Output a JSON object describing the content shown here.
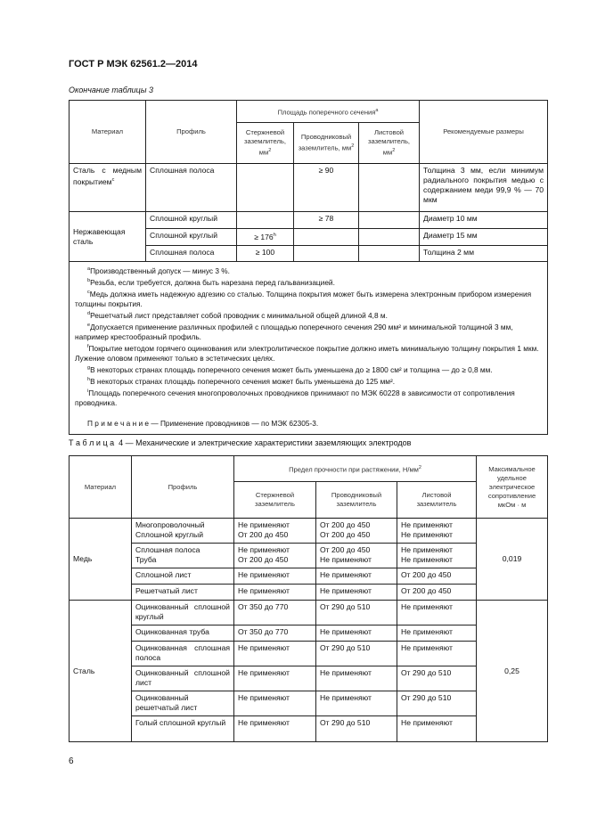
{
  "header": {
    "title": "ГОСТ Р МЭК 62561.2—2014"
  },
  "table3": {
    "caption": "Окончание таблицы 3",
    "headers": {
      "material": "Материал",
      "profile": "Профиль",
      "area": "Площадь поперечного сечения",
      "area_sup": "a",
      "rod": "Стержневой заземлитель, мм",
      "conductor": "Проводниковый заземлитель, мм",
      "sheet": "Листовой заземлитель, мм",
      "unit_sup": "2",
      "recommended": "Рекомендуемые размеры"
    },
    "groups": [
      {
        "material": "Сталь с медным покрытием",
        "material_sup": "c",
        "rows": [
          {
            "profile": "Сплошная полоса",
            "rod": "",
            "conductor": "≥ 90",
            "sheet": "",
            "recommended": "Толщина 3 мм, если минимум радиального покрытия медью с содержанием меди 99,9 % — 70 мкм"
          }
        ]
      },
      {
        "material": "Нержавеющая сталь",
        "material_sup": "",
        "rows": [
          {
            "profile": "Сплошной круглый",
            "rod": "",
            "conductor": "≥ 78",
            "sheet": "",
            "recommended": "Диаметр 10 мм"
          },
          {
            "profile": "Сплошной круглый",
            "rod": "≥ 176",
            "rod_sup": "h",
            "conductor": "",
            "sheet": "",
            "recommended": "Диаметр 15 мм"
          },
          {
            "profile": "Сплошная полоса",
            "rod": "≥ 100",
            "conductor": "",
            "sheet": "",
            "recommended": "Толщина 2 мм"
          }
        ]
      }
    ],
    "footnotes": [
      {
        "mark": "a",
        "text": "Производственный допуск — минус 3 %."
      },
      {
        "mark": "b",
        "text": "Резьба, если требуется, должна быть нарезана перед гальванизацией."
      },
      {
        "mark": "c",
        "text": "Медь должна иметь надежную адгезию со сталью. Толщина покрытия может быть измерена электронным прибором измерения толщины покрытия."
      },
      {
        "mark": "d",
        "text": "Решетчатый лист представляет собой проводник с минимальной общей длиной 4,8 м."
      },
      {
        "mark": "e",
        "text": "Допускается применение различных профилей с площадью поперечного сечения 290 мм² и минимальной толщиной 3 мм, например крестообразный профиль."
      },
      {
        "mark": "f",
        "text": "Покрытие методом горячего оцинкования или электролитическое покрытие должно иметь минимальную толщину покрытия 1 мкм. Лужение оловом применяют только в эстетических целях."
      },
      {
        "mark": "g",
        "text": "В некоторых странах площадь поперечного сечения может быть уменьшена до ≥ 1800 см² и толщина — до ≥ 0,8 мм."
      },
      {
        "mark": "h",
        "text": "В некоторых странах площадь поперечного сечения может быть уменьшена до 125 мм²."
      },
      {
        "mark": "i",
        "text": "Площадь поперечного сечения многопроволочных проводников принимают по МЭК 60228 в зависимости от сопротивления проводника."
      }
    ],
    "note": "П р и м е ч а н и е — Применение проводников — по МЭК 62305-3."
  },
  "table4": {
    "caption": "Т а б л и ц а  4 — Механические и электрические характеристики заземляющих электродов",
    "headers": {
      "material": "Материал",
      "profile": "Профиль",
      "strength": "Предел прочности при растяжении, Н/мм",
      "strength_sup": "2",
      "rod": "Стержневой заземлитель",
      "conductor": "Проводниковый заземлитель",
      "sheet": "Листовой заземлитель",
      "resistivity": "Максимальное удельное электрическое сопротивление мкОм · м"
    },
    "groups": [
      {
        "material": "Медь",
        "resistivity": "0,019",
        "rows": [
          {
            "profile": "Многопроволочный\nСплошной круглый",
            "rod": "Не применяют\nОт 200 до 450",
            "conductor": "От 200 до 450\nОт 200 до 450",
            "sheet": "Не применяют\nНе применяют"
          },
          {
            "profile": "Сплошная полоса\nТруба",
            "rod": "Не применяют\nОт 200 до 450",
            "conductor": "От 200 до 450\nНе применяют",
            "sheet": "Не применяют\nНе применяют"
          },
          {
            "profile": "Сплошной лист",
            "rod": "Не применяют",
            "conductor": "Не применяют",
            "sheet": "От 200 до 450"
          },
          {
            "profile": "Решетчатый лист",
            "rod": "Не применяют",
            "conductor": "Не применяют",
            "sheet": "От 200 до 450"
          }
        ]
      },
      {
        "material": "Сталь",
        "resistivity": "0,25",
        "rows": [
          {
            "profile": "Оцинкованный сплошной круглый",
            "rod": "От 350 до 770",
            "conductor": "От 290 до 510",
            "sheet": "Не применяют"
          },
          {
            "profile": "Оцинкованная труба",
            "rod": "От 350 до 770",
            "conductor": "Не применяют",
            "sheet": "Не применяют"
          },
          {
            "profile": "Оцинкованная сплошная полоса",
            "rod": "Не применяют",
            "conductor": "От 290 до 510",
            "sheet": "Не применяют"
          },
          {
            "profile": "Оцинкованный сплошной лист",
            "rod": "Не применяют",
            "conductor": "Не применяют",
            "sheet": "От 290 до 510"
          },
          {
            "profile": "Оцинкованный решетчатый лист",
            "rod": "Не применяют",
            "conductor": "Не применяют",
            "sheet": "От 290 до 510"
          },
          {
            "profile": "Голый сплошной круглый",
            "rod": "Не применяют",
            "conductor": "От 290 до 510",
            "sheet": "Не применяют"
          }
        ]
      }
    ]
  },
  "footer": {
    "page_number": "6"
  }
}
